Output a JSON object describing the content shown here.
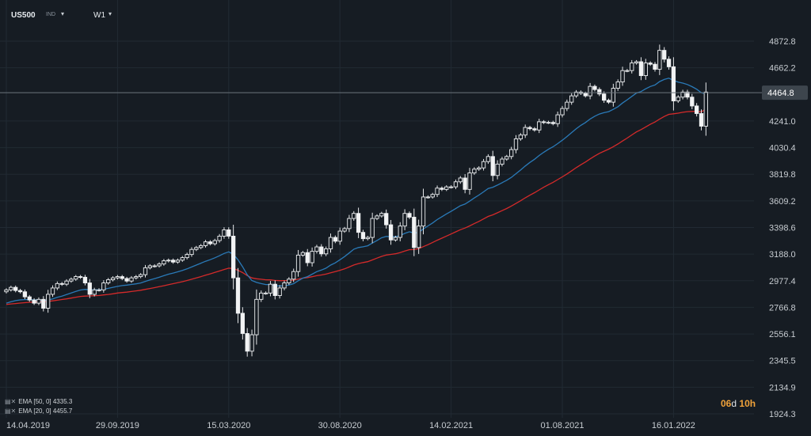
{
  "header": {
    "symbol": "US500",
    "symbol_type": "IND",
    "timeframe": "W1"
  },
  "indicators": [
    {
      "label": "EMA [50, 0] 4335.3",
      "color": "#d42a2a"
    },
    {
      "label": "EMA [20, 0] 4455.7",
      "color": "#2a7ab8"
    }
  ],
  "timer": {
    "days_num": "06",
    "days_unit": "d",
    "hours": "10h"
  },
  "current_price_label": "4464.8",
  "chart_data": {
    "type": "candlestick",
    "ylim": [
      1924.3,
      4900
    ],
    "price_ticks": [
      "4872.8",
      "4662.2",
      "4464.8",
      "4241.0",
      "4030.4",
      "3819.8",
      "3609.2",
      "3398.6",
      "3188.0",
      "2977.4",
      "2766.8",
      "2556.1",
      "2345.5",
      "2134.9",
      "1924.3"
    ],
    "date_ticks": [
      {
        "label": "14.04.2019",
        "index": 0
      },
      {
        "label": "29.09.2019",
        "index": 24
      },
      {
        "label": "15.03.2020",
        "index": 48
      },
      {
        "label": "30.08.2020",
        "index": 72
      },
      {
        "label": "14.02.2021",
        "index": 96
      },
      {
        "label": "01.08.2021",
        "index": 120
      },
      {
        "label": "16.01.2022",
        "index": 144
      }
    ],
    "current_price": 4464.8,
    "close": [
      2905,
      2925,
      2900,
      2890,
      2850,
      2825,
      2800,
      2830,
      2760,
      2870,
      2920,
      2955,
      2950,
      2975,
      2990,
      3010,
      3005,
      2960,
      2870,
      2905,
      2905,
      2960,
      2985,
      3000,
      3010,
      2995,
      2975,
      3000,
      3010,
      3025,
      3080,
      3095,
      3095,
      3110,
      3135,
      3140,
      3125,
      3140,
      3160,
      3185,
      3225,
      3240,
      3255,
      3285,
      3270,
      3295,
      3330,
      3380,
      3330,
      3000,
      2720,
      2560,
      2420,
      2550,
      2830,
      2880,
      2880,
      2950,
      2860,
      2920,
      2960,
      2990,
      3050,
      3180,
      3200,
      3120,
      3210,
      3245,
      3190,
      3230,
      3320,
      3290,
      3370,
      3390,
      3470,
      3510,
      3360,
      3310,
      3320,
      3470,
      3490,
      3510,
      3420,
      3300,
      3320,
      3410,
      3510,
      3480,
      3240,
      3410,
      3640,
      3640,
      3660,
      3710,
      3700,
      3720,
      3720,
      3760,
      3790,
      3700,
      3830,
      3860,
      3870,
      3920,
      3960,
      3810,
      3900,
      3940,
      3960,
      4015,
      4100,
      4130,
      4190,
      4180,
      4170,
      4235,
      4230,
      4230,
      4220,
      4290,
      4340,
      4390,
      4440,
      4470,
      4460,
      4440,
      4515,
      4490,
      4455,
      4405,
      4390,
      4500,
      4550,
      4640,
      4640,
      4700,
      4710,
      4600,
      4700,
      4690,
      4650,
      4800,
      4730,
      4670,
      4400,
      4430,
      4470,
      4430,
      4360,
      4300,
      4200,
      4470
    ],
    "series": [
      {
        "name": "EMA [50, 0] 4335.3",
        "color": "#d42a2a",
        "values": [
          2790,
          2794,
          2797,
          2801,
          2804,
          2807,
          2809,
          2811,
          2812,
          2814,
          2818,
          2823,
          2829,
          2834,
          2840,
          2847,
          2853,
          2856,
          2857,
          2859,
          2861,
          2865,
          2869,
          2874,
          2880,
          2884,
          2887,
          2892,
          2897,
          2902,
          2909,
          2916,
          2923,
          2930,
          2938,
          2946,
          2954,
          2962,
          2970,
          2979,
          2989,
          3000,
          3010,
          3021,
          3032,
          3043,
          3054,
          3066,
          3077,
          3074,
          3060,
          3042,
          3018,
          3000,
          2993,
          2989,
          2985,
          2984,
          2980,
          2978,
          2978,
          2979,
          2982,
          2990,
          2998,
          3002,
          3009,
          3017,
          3023,
          3030,
          3040,
          3049,
          3060,
          3071,
          3086,
          3102,
          3113,
          3121,
          3128,
          3142,
          3156,
          3170,
          3181,
          3186,
          3191,
          3200,
          3212,
          3223,
          3224,
          3231,
          3247,
          3263,
          3280,
          3298,
          3314,
          3331,
          3347,
          3364,
          3381,
          3394,
          3411,
          3429,
          3447,
          3466,
          3486,
          3499,
          3515,
          3532,
          3549,
          3568,
          3589,
          3610,
          3633,
          3654,
          3674,
          3696,
          3717,
          3737,
          3756,
          3777,
          3799,
          3822,
          3847,
          3872,
          3895,
          3917,
          3941,
          3964,
          3985,
          4002,
          4018,
          4038,
          4059,
          4083,
          4106,
          4131,
          4155,
          4173,
          4194,
          4215,
          4233,
          4256,
          4277,
          4294,
          4298,
          4303,
          4310,
          4315,
          4317,
          4317,
          4313,
          4335
        ]
      },
      {
        "name": "EMA [20, 0] 4455.7",
        "color": "#2a7ab8",
        "values": [
          2800,
          2811,
          2820,
          2826,
          2828,
          2828,
          2826,
          2826,
          2821,
          2825,
          2834,
          2846,
          2856,
          2868,
          2880,
          2893,
          2904,
          2909,
          2905,
          2905,
          2905,
          2910,
          2917,
          2925,
          2933,
          2939,
          2943,
          2948,
          2953,
          2960,
          2972,
          2984,
          2994,
          3005,
          3017,
          3029,
          3038,
          3048,
          3059,
          3071,
          3086,
          3101,
          3116,
          3131,
          3144,
          3159,
          3175,
          3193,
          3206,
          3187,
          3143,
          3088,
          3024,
          2979,
          2964,
          2955,
          2947,
          2947,
          2938,
          2936,
          2938,
          2943,
          2954,
          2977,
          2998,
          3010,
          3029,
          3049,
          3062,
          3077,
          3101,
          3119,
          3143,
          3168,
          3197,
          3227,
          3240,
          3246,
          3254,
          3275,
          3296,
          3317,
          3328,
          3326,
          3326,
          3335,
          3352,
          3365,
          3354,
          3360,
          3387,
          3411,
          3434,
          3461,
          3484,
          3506,
          3526,
          3548,
          3571,
          3584,
          3607,
          3632,
          3655,
          3680,
          3707,
          3717,
          3734,
          3753,
          3772,
          3795,
          3824,
          3853,
          3885,
          3913,
          3938,
          3968,
          3994,
          4017,
          4037,
          4062,
          4089,
          4118,
          4149,
          4180,
          4207,
          4229,
          4257,
          4279,
          4296,
          4307,
          4315,
          4333,
          4354,
          4383,
          4409,
          4436,
          4462,
          4474,
          4496,
          4514,
          4526,
          4553,
          4570,
          4580,
          4562,
          4549,
          4541,
          4530,
          4513,
          4493,
          4465,
          4456
        ]
      }
    ]
  }
}
